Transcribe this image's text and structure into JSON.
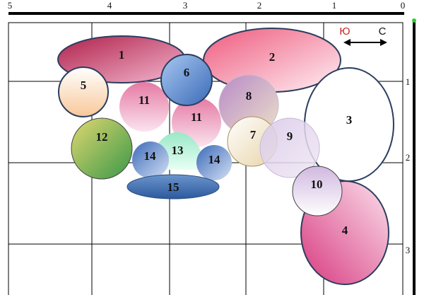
{
  "ruler_top": [
    "5",
    "4",
    "3",
    "2",
    "1",
    "0"
  ],
  "ruler_right": [
    "1",
    "2",
    "3"
  ],
  "compass": {
    "left": "Ю",
    "right": "С"
  },
  "shapes": [
    {
      "label": "2"
    },
    {
      "label": "3"
    },
    {
      "label": "4"
    },
    {
      "label": "1"
    },
    {
      "label": "5"
    },
    {
      "label": "11"
    },
    {
      "label": "11"
    },
    {
      "label": "6"
    },
    {
      "label": "8"
    },
    {
      "label": "7"
    },
    {
      "label": "9"
    },
    {
      "label": "10"
    },
    {
      "label": "12"
    },
    {
      "label": "13"
    },
    {
      "label": "14"
    },
    {
      "label": "14"
    },
    {
      "label": "15"
    }
  ]
}
